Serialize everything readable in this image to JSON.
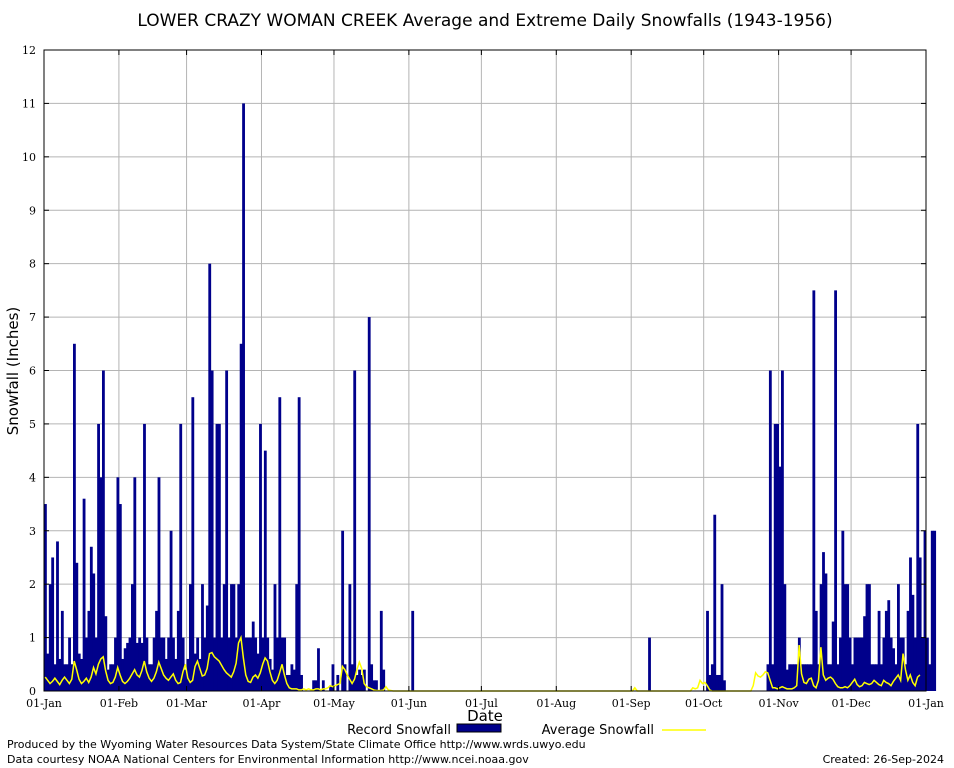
{
  "chart_data": {
    "type": "bar",
    "title": "LOWER CRAZY WOMAN CREEK Average and Extreme Daily Snowfalls (1943-1956)",
    "xlabel": "Date",
    "ylabel": "Snowfall (Inches)",
    "ylim": [
      0,
      12
    ],
    "y_ticks": [
      "0",
      "1",
      "2",
      "3",
      "4",
      "5",
      "6",
      "7",
      "8",
      "9",
      "10",
      "11",
      "12"
    ],
    "x_ticks": [
      {
        "label": "01-Jan",
        "day": 0
      },
      {
        "label": "01-Feb",
        "day": 31
      },
      {
        "label": "01-Mar",
        "day": 59
      },
      {
        "label": "01-Apr",
        "day": 90
      },
      {
        "label": "01-May",
        "day": 120
      },
      {
        "label": "01-Jun",
        "day": 151
      },
      {
        "label": "01-Jul",
        "day": 181
      },
      {
        "label": "01-Aug",
        "day": 212
      },
      {
        "label": "01-Sep",
        "day": 243
      },
      {
        "label": "01-Oct",
        "day": 273
      },
      {
        "label": "01-Nov",
        "day": 304
      },
      {
        "label": "01-Dec",
        "day": 334
      },
      {
        "label": "01-Jan",
        "day": 365
      }
    ],
    "grid": true,
    "series": [
      {
        "name": "Record Snowfall",
        "color": "#00008b",
        "values": [
          3.5,
          0.7,
          2,
          2.5,
          0.5,
          2.8,
          0.6,
          1.5,
          0.5,
          0.5,
          1,
          0.5,
          6.5,
          2.4,
          0.7,
          0.6,
          3.6,
          1,
          1.5,
          2.7,
          2.2,
          1,
          5,
          4,
          6,
          1.4,
          0.4,
          0.5,
          0.5,
          1,
          4,
          3.5,
          0.6,
          0.8,
          0.9,
          1,
          2,
          4,
          0.9,
          1,
          0.9,
          5,
          1,
          0.5,
          0.5,
          1,
          1.5,
          4,
          1,
          1,
          0.6,
          1,
          3,
          1,
          0.6,
          1.5,
          5,
          1,
          0.4,
          0.6,
          2,
          5.5,
          0.7,
          1,
          0.6,
          2,
          1,
          1.6,
          8,
          6,
          1,
          5,
          5,
          1,
          2,
          6,
          1,
          2,
          2,
          1,
          2,
          6.5,
          11,
          1,
          1,
          1,
          1.3,
          1,
          0.7,
          5,
          1,
          4.5,
          1,
          0.6,
          0.4,
          2,
          1,
          5.5,
          1,
          1,
          0.3,
          0.3,
          0.5,
          0.4,
          2,
          5.5,
          0.3,
          0,
          0,
          0,
          0,
          0.2,
          0.2,
          0.8,
          0,
          0.2,
          0,
          0,
          0.1,
          0.5,
          0,
          0.3,
          0,
          3,
          0.5,
          0,
          2,
          0.5,
          6,
          0.3,
          0.4,
          0.3,
          0.4,
          0,
          7,
          0.5,
          0.2,
          0.2,
          0,
          1.5,
          0.4,
          0,
          0,
          0,
          0,
          0,
          0,
          0,
          0,
          0,
          0,
          0,
          1.5,
          0,
          0,
          0,
          0,
          0,
          0,
          0,
          0,
          0,
          0,
          0,
          0,
          0,
          0,
          0,
          0,
          0,
          0,
          0,
          0,
          0,
          0,
          0,
          0,
          0,
          0,
          0,
          0,
          0,
          0,
          0,
          0,
          0,
          0,
          0,
          0,
          0,
          0,
          0,
          0,
          0,
          0,
          0,
          0,
          0,
          0,
          0,
          0,
          0,
          0,
          0,
          0,
          0,
          0,
          0,
          0,
          0,
          0,
          0,
          0,
          0,
          0,
          0,
          0,
          0,
          0,
          0,
          0,
          0,
          0,
          0,
          0,
          0,
          0,
          0,
          0,
          0,
          0,
          0,
          0,
          0,
          0,
          0,
          0,
          0,
          0,
          0,
          0,
          0,
          0,
          0,
          0,
          0,
          0,
          0,
          0,
          0,
          1,
          0,
          0,
          0,
          0,
          0,
          0,
          0,
          0,
          0,
          0,
          0,
          0,
          0,
          0,
          0,
          0,
          0,
          0,
          0,
          0,
          0,
          0,
          0,
          1.5,
          0.3,
          0.5,
          3.3,
          0.3,
          0.3,
          2,
          0.2,
          0,
          0,
          0,
          0,
          0,
          0,
          0,
          0,
          0,
          0,
          0,
          0,
          0,
          0,
          0,
          0,
          0,
          0.5,
          6,
          0.5,
          5,
          5,
          4.2,
          6,
          2,
          0.4,
          0.5,
          0.5,
          0.5,
          0.5,
          1,
          0.5,
          0.5,
          0.5,
          0.5,
          0.5,
          7.5,
          1.5,
          0.5,
          2,
          2.6,
          2.2,
          0.5,
          0.5,
          1.3,
          7.5,
          0.5,
          1,
          3,
          2,
          2,
          1,
          0.5,
          1,
          1,
          1,
          1,
          1.4,
          2,
          2,
          0.5,
          0.5,
          0.5,
          1.5,
          0.5,
          1,
          1.5,
          1.7,
          1,
          0.8,
          0.5,
          2,
          1,
          1,
          0.5,
          1.5,
          2.5,
          1.8,
          1,
          5,
          2.5,
          1,
          3,
          1,
          0.5,
          3,
          3
        ],
        "legend": "Record Snowfall"
      },
      {
        "name": "Average Snowfall",
        "color": "#ffff00",
        "values": [
          0.26,
          0.2,
          0.14,
          0.18,
          0.24,
          0.18,
          0.12,
          0.2,
          0.26,
          0.2,
          0.14,
          0.22,
          0.56,
          0.4,
          0.22,
          0.14,
          0.18,
          0.24,
          0.16,
          0.26,
          0.44,
          0.32,
          0.5,
          0.6,
          0.64,
          0.38,
          0.2,
          0.14,
          0.16,
          0.26,
          0.44,
          0.3,
          0.18,
          0.14,
          0.18,
          0.24,
          0.32,
          0.4,
          0.3,
          0.26,
          0.38,
          0.56,
          0.36,
          0.24,
          0.18,
          0.24,
          0.36,
          0.54,
          0.42,
          0.3,
          0.24,
          0.2,
          0.26,
          0.32,
          0.2,
          0.14,
          0.16,
          0.36,
          0.5,
          0.24,
          0.16,
          0.2,
          0.46,
          0.56,
          0.42,
          0.28,
          0.3,
          0.42,
          0.7,
          0.72,
          0.64,
          0.6,
          0.56,
          0.48,
          0.4,
          0.34,
          0.3,
          0.26,
          0.36,
          0.52,
          0.9,
          1,
          0.62,
          0.3,
          0.18,
          0.16,
          0.26,
          0.3,
          0.24,
          0.34,
          0.5,
          0.62,
          0.56,
          0.36,
          0.2,
          0.14,
          0.2,
          0.34,
          0.5,
          0.3,
          0.14,
          0.06,
          0.04,
          0.04,
          0.04,
          0.02,
          0.02,
          0.04,
          0.02,
          0.04,
          0.02,
          0.02,
          0.04,
          0.04,
          0.02,
          0.04,
          0.04,
          0.06,
          0.1,
          0.08,
          0.1,
          0.12,
          0.14,
          0.46,
          0.4,
          0.3,
          0.22,
          0.14,
          0.22,
          0.4,
          0.54,
          0.42,
          0.14,
          0.08,
          0.06,
          0.04,
          0.02,
          0.01,
          0.01,
          0.01,
          0.02,
          0.08,
          0.02,
          0.01,
          0,
          0,
          0,
          0,
          0,
          0,
          0,
          0,
          0,
          0,
          0,
          0,
          0,
          0,
          0,
          0,
          0,
          0,
          0,
          0,
          0,
          0,
          0,
          0,
          0,
          0,
          0,
          0,
          0,
          0,
          0,
          0,
          0,
          0,
          0,
          0,
          0,
          0,
          0,
          0,
          0,
          0,
          0,
          0,
          0,
          0,
          0,
          0,
          0,
          0,
          0,
          0,
          0,
          0,
          0,
          0,
          0,
          0,
          0,
          0,
          0,
          0,
          0,
          0,
          0,
          0,
          0,
          0,
          0,
          0,
          0,
          0,
          0,
          0,
          0,
          0,
          0,
          0,
          0,
          0,
          0,
          0,
          0,
          0,
          0,
          0,
          0,
          0,
          0,
          0,
          0,
          0,
          0,
          0,
          0,
          0,
          0,
          0,
          0,
          0,
          0.06,
          0,
          0,
          0,
          0,
          0,
          0,
          0,
          0,
          0,
          0,
          0,
          0,
          0,
          0,
          0,
          0,
          0,
          0,
          0,
          0,
          0,
          0,
          0,
          0.06,
          0.04,
          0.06,
          0.2,
          0.14,
          0.16,
          0.1,
          0.02,
          0,
          0,
          0,
          0,
          0,
          0,
          0,
          0,
          0,
          0,
          0,
          0,
          0,
          0,
          0,
          0,
          0,
          0.1,
          0.34,
          0.28,
          0.26,
          0.3,
          0.36,
          0.34,
          0.2,
          0.06,
          0.06,
          0.04,
          0.06,
          0.08,
          0.06,
          0.04,
          0.04,
          0.04,
          0.06,
          0.1,
          0.86,
          0.32,
          0.16,
          0.14,
          0.22,
          0.24,
          0.1,
          0.06,
          0.2,
          0.82,
          0.3,
          0.2,
          0.24,
          0.26,
          0.22,
          0.14,
          0.08,
          0.06,
          0.06,
          0.08,
          0.06,
          0.1,
          0.16,
          0.22,
          0.12,
          0.08,
          0.1,
          0.16,
          0.14,
          0.12,
          0.14,
          0.2,
          0.16,
          0.12,
          0.1,
          0.2,
          0.16,
          0.14,
          0.1,
          0.18,
          0.24,
          0.3,
          0.2,
          0.7,
          0.4,
          0.2,
          0.3,
          0.16,
          0.1,
          0.26,
          0.3
        ],
        "legend": "Average Snowfall"
      }
    ],
    "legend_placement": "bottom"
  },
  "footer": {
    "left_line1": "Produced by the Wyoming Water Resources Data System/State Climate Office http://www.wrds.uwyo.edu",
    "left_line2": "Data courtesy NOAA National Centers for Environmental Information http://www.ncei.noaa.gov",
    "created": "Created:  26-Sep-2024"
  },
  "colors": {
    "record_bar": "#00008b",
    "average_line": "#ffff00",
    "grid": "#b4b4b4",
    "frame": "#000000"
  }
}
